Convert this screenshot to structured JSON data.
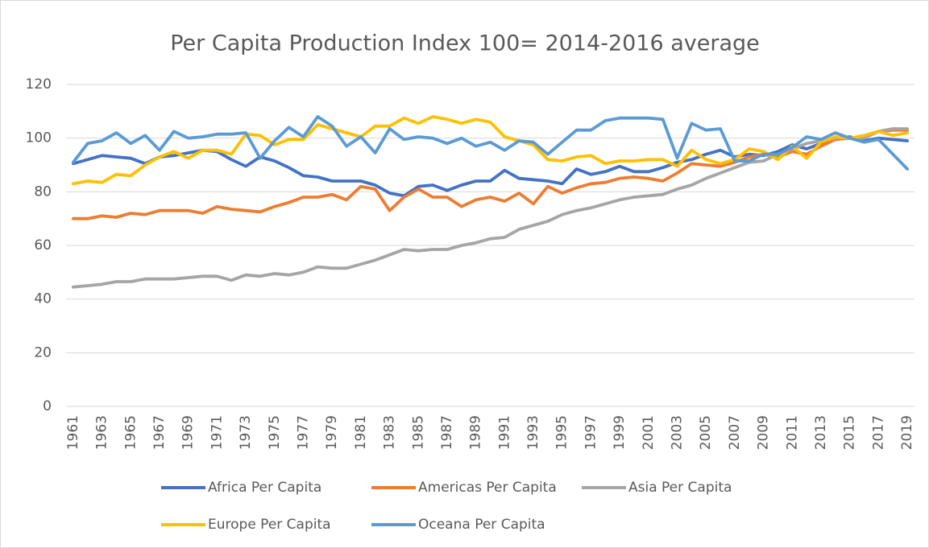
{
  "chart_data": {
    "type": "line",
    "title": "Per Capita Production Index 100= 2014-2016 average",
    "categories": [
      "1961",
      null,
      "1963",
      null,
      "1965",
      null,
      "1967",
      null,
      "1969",
      null,
      "1971",
      null,
      "1973",
      null,
      "1975",
      null,
      "1977",
      null,
      "1979",
      null,
      "1981",
      null,
      "1983",
      null,
      "1985",
      null,
      "1987",
      null,
      "1989",
      null,
      "1991",
      null,
      "1993",
      null,
      "1995",
      null,
      "1997",
      null,
      "1999",
      null,
      "2001",
      null,
      "2003",
      null,
      "2005",
      null,
      "2007",
      null,
      "2009",
      null,
      "2011",
      null,
      "2013",
      null,
      "2015",
      null,
      "2017",
      null,
      "2019"
    ],
    "ylim": [
      0,
      120
    ],
    "yticks": [
      0,
      20,
      40,
      60,
      80,
      100,
      120
    ],
    "grid": true,
    "legend": "bottom",
    "series": [
      {
        "name": "Africa Per Capita",
        "color": "#4472c4",
        "values": [
          90.5,
          92,
          93.5,
          93,
          92.5,
          90.5,
          93,
          93.5,
          94.5,
          95.5,
          95,
          92,
          89.5,
          93,
          91.5,
          89,
          86,
          85.5,
          84,
          84,
          84,
          82.5,
          79.5,
          78.5,
          82,
          82.5,
          80.5,
          82.5,
          84,
          84,
          88,
          85,
          84.5,
          84,
          83,
          88.5,
          86.5,
          87.5,
          89.5,
          87.5,
          87.5,
          89,
          91,
          92,
          94,
          95.5,
          93,
          94,
          93.5,
          95,
          97.5,
          96,
          98,
          100,
          100.5,
          99,
          100,
          99.5,
          99
        ]
      },
      {
        "name": "Americas Per Capita",
        "color": "#ed7d31",
        "values": [
          70,
          70,
          71,
          70.5,
          72,
          71.5,
          73,
          73,
          73,
          72,
          74.5,
          73.5,
          73,
          72.5,
          74.5,
          76,
          78,
          78,
          79,
          77,
          82,
          81,
          73,
          78,
          81,
          78,
          78,
          74.5,
          77,
          78,
          76.5,
          79.5,
          75.5,
          82,
          79.5,
          81.5,
          83,
          83.5,
          85,
          85.5,
          85,
          84,
          87,
          90.5,
          90,
          89.5,
          91,
          93,
          94,
          93,
          95,
          94,
          97,
          99.5,
          100,
          100.5,
          102.5,
          103,
          103
        ]
      },
      {
        "name": "Asia Per Capita",
        "color": "#a5a5a5",
        "values": [
          44.5,
          45,
          45.5,
          46.5,
          46.5,
          47.5,
          47.5,
          47.5,
          48,
          48.5,
          48.5,
          47,
          49,
          48.5,
          49.5,
          49,
          50,
          52,
          51.5,
          51.5,
          53,
          54.5,
          56.5,
          58.5,
          58,
          58.5,
          58.5,
          60,
          61,
          62.5,
          63,
          66,
          67.5,
          69,
          71.5,
          73,
          74,
          75.5,
          77,
          78,
          78.5,
          79,
          81,
          82.5,
          85,
          87,
          89,
          91,
          91.5,
          94,
          96,
          98,
          99,
          100,
          100,
          100,
          102.5,
          103.5,
          103.5
        ]
      },
      {
        "name": "Europe Per Capita",
        "color": "#ffc000",
        "values": [
          83,
          84,
          83.5,
          86.5,
          86,
          90,
          93,
          95,
          92.5,
          95.5,
          95.5,
          94,
          101.5,
          101,
          97.5,
          99.5,
          99.5,
          105,
          103.5,
          102,
          100.5,
          104.5,
          104.5,
          107.5,
          105.5,
          108,
          107,
          105.5,
          107,
          106,
          100.5,
          99,
          97.5,
          92,
          91.5,
          93,
          93.5,
          90.5,
          91.5,
          91.5,
          92,
          92,
          89.5,
          95.5,
          92,
          90.5,
          92,
          96,
          95,
          92,
          97,
          92.5,
          98.5,
          100.5,
          100,
          101,
          102.5,
          101,
          102
        ]
      },
      {
        "name": "Oceana Per Capita",
        "color": "#5b9bd5",
        "values": [
          91,
          98,
          99,
          102,
          98,
          101,
          95.5,
          102.5,
          100,
          100.5,
          101.5,
          101.5,
          102,
          92.5,
          99,
          104,
          100.5,
          108,
          104.5,
          97,
          100.5,
          94.5,
          103.5,
          99.5,
          100.5,
          100,
          98,
          100,
          97,
          98.5,
          95.5,
          99,
          98.5,
          94,
          98.5,
          103,
          103,
          106.5,
          107.5,
          107.5,
          107.5,
          107,
          92.5,
          105.5,
          103,
          103.5,
          91.5,
          91.5,
          94,
          94,
          96.5,
          100.5,
          99.5,
          102,
          100,
          98.5,
          99.5,
          94,
          88.5
        ]
      }
    ]
  }
}
